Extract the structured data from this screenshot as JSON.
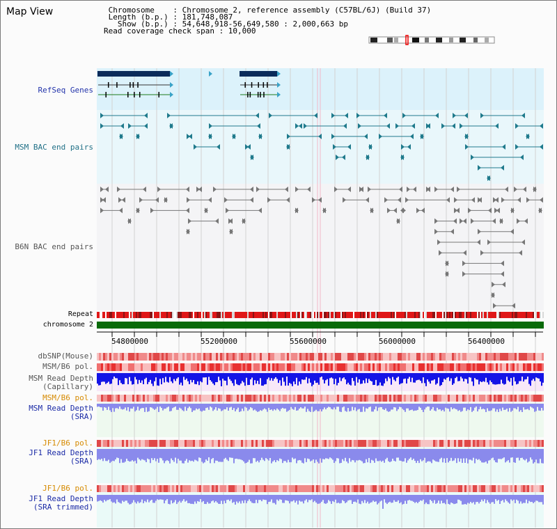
{
  "window": {
    "title": "Map View"
  },
  "header": {
    "lines": [
      " Chromosome    : Chromosome 2, reference assembly (C57BL/6J) (Build 37)",
      " Length (b.p.) : 181,748,087",
      "   Show (b.p.) : 54,648,918-56,649,580 : 2,000,663 bp",
      "Read coverage check span : 10,000"
    ]
  },
  "tracks": {
    "refseq": "RefSeq Genes",
    "msm_bac": "MSM BAC end pairs",
    "b6n_bac": "B6N BAC end pairs",
    "repeat": "Repeat",
    "chromosome": "chromosome 2",
    "dbsnp": "dbSNP(Mouse)",
    "msm_b6_pol": "MSM/B6 pol.",
    "msm_depth_cap_1": "MSM Read Depth",
    "msm_depth_cap_2": "(Capillary)",
    "msm_b6_pol_sra": "MSM/B6 pol.",
    "msm_depth_sra_1": "MSM Read Depth",
    "msm_depth_sra_2": "(SRA)",
    "jf1_b6_pol": "JF1/B6 pol.",
    "jf1_depth_sra_1": "JF1 Read Depth",
    "jf1_depth_sra_2": "(SRA)",
    "jf1_b6_pol_trim": "JF1/B6 pol.",
    "jf1_depth_trim_1": "JF1 Read Depth",
    "jf1_depth_trim_2": "(SRA trimmed)"
  },
  "axis": {
    "ticks": [
      "54800000",
      "55200000",
      "55600000",
      "56000000",
      "56400000"
    ]
  },
  "colors": {
    "refseq_bg": "#dcf2fb",
    "msm_bg": "#e9f7fb",
    "b6n_bg": "#f4f4f6",
    "chrom_bar": "#0a6a0a",
    "gene": "#0b2b5a",
    "pol_red": "#e23b3b",
    "depth_dark": "#1414e6",
    "depth_light": "#8a8aec",
    "track_teal": "#1f7a8c",
    "track_gray": "#777777"
  }
}
